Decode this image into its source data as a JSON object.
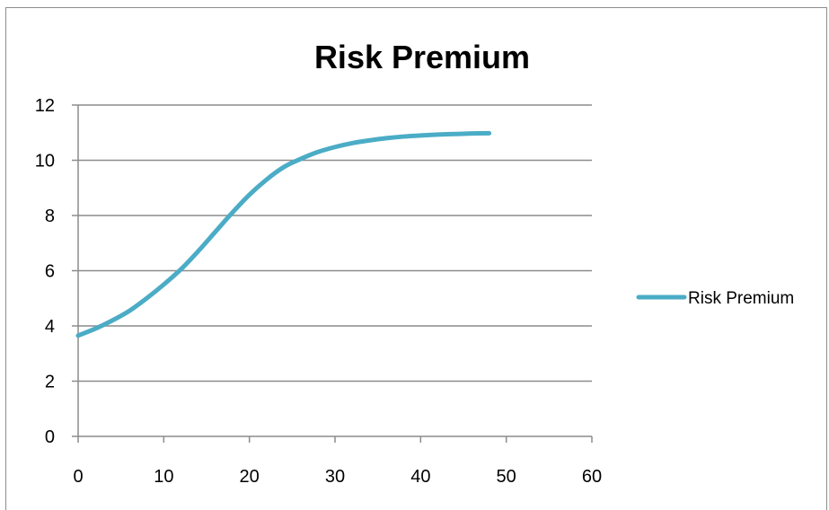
{
  "chart_data": {
    "type": "line",
    "title": "Risk Premium",
    "xlabel": "",
    "ylabel": "",
    "xlim": [
      0,
      60
    ],
    "ylim": [
      0,
      12
    ],
    "xticks": [
      0,
      10,
      20,
      30,
      40,
      50,
      60
    ],
    "yticks": [
      0,
      2,
      4,
      6,
      8,
      10,
      12
    ],
    "grid": "horizontal",
    "legend": "right",
    "series": [
      {
        "name": "Risk Premium",
        "color": "#4bacc6",
        "x": [
          0,
          2,
          4,
          6,
          8,
          10,
          12,
          14,
          16,
          18,
          20,
          22,
          24,
          26,
          28,
          30,
          32,
          34,
          36,
          38,
          40,
          42,
          44,
          46,
          48
        ],
        "y": [
          3.65,
          3.9,
          4.2,
          4.55,
          5.0,
          5.5,
          6.05,
          6.7,
          7.4,
          8.1,
          8.75,
          9.3,
          9.75,
          10.05,
          10.3,
          10.48,
          10.62,
          10.72,
          10.8,
          10.86,
          10.9,
          10.93,
          10.95,
          10.97,
          10.98
        ]
      }
    ]
  }
}
